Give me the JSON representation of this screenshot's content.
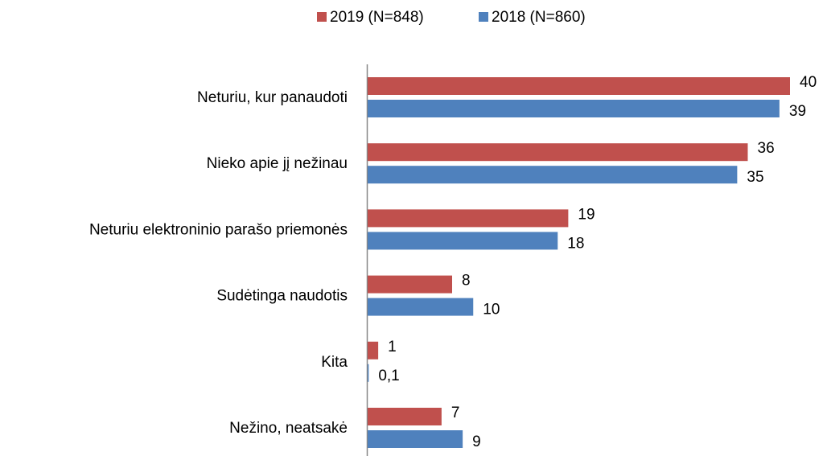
{
  "chart_data": {
    "type": "barh",
    "categories": [
      "Neturiu, kur panaudoti",
      "Nieko apie jį nežinau",
      "Neturiu elektroninio parašo priemonės",
      "Sudėtinga naudotis",
      "Kita",
      "Nežino, neatsakė"
    ],
    "series": [
      {
        "name": "2019 (N=848)",
        "color": "#c0504d",
        "values": [
          40,
          36,
          19,
          8,
          1,
          7
        ]
      },
      {
        "name": "2018 (N=860)",
        "color": "#4f81bd",
        "values": [
          39,
          35,
          18,
          10,
          0.1,
          9
        ],
        "value_labels": [
          "39",
          "35",
          "18",
          "10",
          "0,1",
          "9"
        ]
      }
    ],
    "legend": "top"
  }
}
